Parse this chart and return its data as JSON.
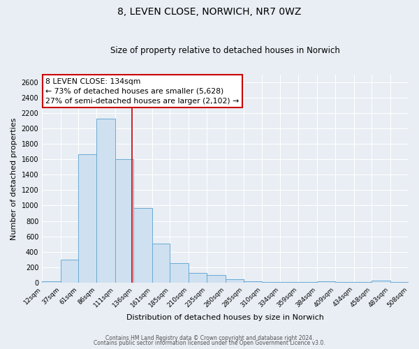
{
  "title": "8, LEVEN CLOSE, NORWICH, NR7 0WZ",
  "subtitle": "Size of property relative to detached houses in Norwich",
  "xlabel": "Distribution of detached houses by size in Norwich",
  "ylabel": "Number of detached properties",
  "bar_color": "#cfe0f0",
  "bar_edge_color": "#6aaad4",
  "bin_edges": [
    12,
    37,
    61,
    86,
    111,
    136,
    161,
    185,
    210,
    235,
    260,
    285,
    310,
    334,
    359,
    384,
    409,
    434,
    458,
    483,
    508
  ],
  "bar_heights": [
    20,
    295,
    1670,
    2130,
    1600,
    970,
    505,
    250,
    120,
    95,
    45,
    20,
    10,
    8,
    5,
    20,
    5,
    3,
    25,
    3
  ],
  "red_line_x": 134,
  "ylim": [
    0,
    2700
  ],
  "yticks": [
    0,
    200,
    400,
    600,
    800,
    1000,
    1200,
    1400,
    1600,
    1800,
    2000,
    2200,
    2400,
    2600
  ],
  "annotation_title": "8 LEVEN CLOSE: 134sqm",
  "annotation_line1": "← 73% of detached houses are smaller (5,628)",
  "annotation_line2": "27% of semi-detached houses are larger (2,102) →",
  "annotation_box_facecolor": "#ffffff",
  "annotation_box_edgecolor": "#cc0000",
  "footer1": "Contains HM Land Registry data © Crown copyright and database right 2024.",
  "footer2": "Contains public sector information licensed under the Open Government Licence v3.0.",
  "bg_color": "#e8eef4",
  "grid_color": "#ffffff"
}
